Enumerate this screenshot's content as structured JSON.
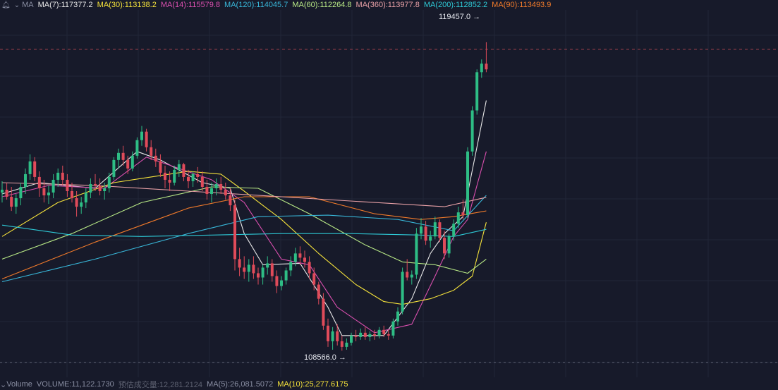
{
  "ma_legend": {
    "label": "MA",
    "items": [
      {
        "text": "MA(7):117377.2",
        "color": "#e8e8e8"
      },
      {
        "text": "MA(30):113138.2",
        "color": "#f5e23b"
      },
      {
        "text": "MA(14):115579.8",
        "color": "#d94fae"
      },
      {
        "text": "MA(120):114045.7",
        "color": "#38b6d8"
      },
      {
        "text": "MA(60):112264.8",
        "color": "#b8e986"
      },
      {
        "text": "MA(360):113977.8",
        "color": "#e8a0a6"
      },
      {
        "text": "MA(200):112852.2",
        "color": "#2ec9d6"
      },
      {
        "text": "MA(90):113493.9",
        "color": "#f07a2a"
      }
    ]
  },
  "volume_legend": {
    "items": [
      {
        "text": "Volume",
        "color": "#8a8fa3"
      },
      {
        "text": "VOLUME:11,122.1730",
        "color": "#8a8fa3"
      },
      {
        "text": "预估成交量:12,281.2124",
        "color": "#5c6070"
      },
      {
        "text": "MA(5):26,081.5072",
        "color": "#8a8fa3"
      },
      {
        "text": "MA(10):25,277.6175",
        "color": "#f5e23b"
      }
    ]
  },
  "price_labels": {
    "high": "119457.0 →",
    "low": "108566.0 →"
  },
  "colors": {
    "up": "#2ebd85",
    "down": "#e04b5a",
    "background": "#171a2a",
    "grid": "#222638"
  },
  "chart_data": {
    "type": "candlestick",
    "title": "",
    "y_range": [
      108000,
      120500
    ],
    "grid": true,
    "annotations": [
      {
        "text": "119457.0",
        "kind": "highest price"
      },
      {
        "text": "108566.0",
        "kind": "lowest price"
      }
    ],
    "ohlc": [
      [
        114150,
        114550,
        113800,
        114250
      ],
      [
        114250,
        114480,
        113900,
        114000
      ],
      [
        114000,
        114350,
        113500,
        113650
      ],
      [
        113650,
        114100,
        113400,
        113950
      ],
      [
        113950,
        114500,
        113700,
        114350
      ],
      [
        114350,
        115000,
        114100,
        114800
      ],
      [
        114800,
        115500,
        114600,
        115250
      ],
      [
        115250,
        115400,
        114550,
        114700
      ],
      [
        114700,
        114900,
        114000,
        114300
      ],
      [
        114300,
        114600,
        113800,
        114050
      ],
      [
        114050,
        114400,
        113750,
        114150
      ],
      [
        114150,
        114800,
        113950,
        114600
      ],
      [
        114600,
        115000,
        114350,
        114850
      ],
      [
        114850,
        115100,
        114400,
        114600
      ],
      [
        114600,
        114800,
        114000,
        114200
      ],
      [
        114200,
        114500,
        113800,
        113950
      ],
      [
        113950,
        114200,
        113300,
        113650
      ],
      [
        113650,
        114000,
        113400,
        113800
      ],
      [
        113800,
        114300,
        113600,
        114150
      ],
      [
        114150,
        114650,
        113950,
        114450
      ],
      [
        114450,
        114800,
        114200,
        114400
      ],
      [
        114400,
        114650,
        114050,
        114200
      ],
      [
        114200,
        114500,
        113900,
        114300
      ],
      [
        114300,
        114850,
        114150,
        114700
      ],
      [
        114700,
        115400,
        114600,
        115300
      ],
      [
        115300,
        115700,
        115000,
        115550
      ],
      [
        115550,
        115800,
        115100,
        115300
      ],
      [
        115300,
        115450,
        114800,
        115000
      ],
      [
        115000,
        115600,
        114900,
        115450
      ],
      [
        115450,
        116100,
        115350,
        116000
      ],
      [
        116000,
        116500,
        115800,
        116300
      ],
      [
        116300,
        116400,
        115600,
        115750
      ],
      [
        115750,
        116000,
        115300,
        115450
      ],
      [
        115450,
        115700,
        115050,
        115250
      ],
      [
        115250,
        115500,
        114700,
        114850
      ],
      [
        114850,
        115100,
        114300,
        114600
      ],
      [
        114600,
        114900,
        114200,
        114500
      ],
      [
        114500,
        115100,
        114400,
        114950
      ],
      [
        114950,
        115300,
        114700,
        115150
      ],
      [
        115150,
        115200,
        114550,
        114700
      ],
      [
        114700,
        114950,
        114300,
        114550
      ],
      [
        114550,
        114900,
        114350,
        114800
      ],
      [
        114800,
        115050,
        114500,
        114700
      ],
      [
        114700,
        114900,
        114200,
        114350
      ],
      [
        114350,
        114600,
        113900,
        114100
      ],
      [
        114100,
        114500,
        113800,
        114300
      ],
      [
        114300,
        114650,
        114050,
        114450
      ],
      [
        114450,
        114700,
        114100,
        114250
      ],
      [
        114250,
        114500,
        113900,
        114050
      ],
      [
        114050,
        114300,
        113500,
        113700
      ],
      [
        113700,
        113900,
        111400,
        111800
      ],
      [
        111800,
        112200,
        111200,
        111500
      ],
      [
        111500,
        111900,
        111100,
        111350
      ],
      [
        111350,
        111800,
        111000,
        111600
      ],
      [
        111600,
        111900,
        111100,
        111300
      ],
      [
        111300,
        111500,
        110900,
        111150
      ],
      [
        111150,
        111600,
        110900,
        111500
      ],
      [
        111500,
        111900,
        111250,
        111650
      ],
      [
        111650,
        111800,
        111000,
        111200
      ],
      [
        111200,
        111400,
        110600,
        110850
      ],
      [
        110850,
        111200,
        110700,
        111050
      ],
      [
        111050,
        111500,
        110900,
        111400
      ],
      [
        111400,
        111900,
        111200,
        111700
      ],
      [
        111700,
        112200,
        111550,
        112000
      ],
      [
        112000,
        112250,
        111600,
        111850
      ],
      [
        111850,
        112100,
        111500,
        111700
      ],
      [
        111700,
        111900,
        111100,
        111300
      ],
      [
        111300,
        111500,
        110700,
        110900
      ],
      [
        110900,
        111000,
        110200,
        110400
      ],
      [
        110400,
        110600,
        109300,
        109450
      ],
      [
        109450,
        109700,
        108700,
        108900
      ],
      [
        108900,
        109400,
        108600,
        109250
      ],
      [
        109250,
        109500,
        108750,
        108900
      ],
      [
        108900,
        109100,
        108566,
        108700
      ],
      [
        108700,
        109000,
        108600,
        108850
      ],
      [
        108850,
        109200,
        108750,
        109100
      ],
      [
        109100,
        109300,
        108900,
        109050
      ],
      [
        109050,
        109350,
        108950,
        109200
      ],
      [
        109200,
        109400,
        108950,
        109050
      ],
      [
        109050,
        109250,
        108900,
        109150
      ],
      [
        109150,
        109300,
        108950,
        109100
      ],
      [
        109100,
        109400,
        109000,
        109300
      ],
      [
        109300,
        109450,
        109050,
        109150
      ],
      [
        109150,
        109300,
        108950,
        109100
      ],
      [
        109100,
        109700,
        109000,
        109600
      ],
      [
        109600,
        110100,
        109450,
        109950
      ],
      [
        109950,
        111500,
        109850,
        111350
      ],
      [
        111350,
        111800,
        111050,
        111150
      ],
      [
        111150,
        111400,
        110900,
        111250
      ],
      [
        111250,
        112900,
        111100,
        112700
      ],
      [
        112700,
        113250,
        112500,
        112950
      ],
      [
        112950,
        113150,
        112300,
        112450
      ],
      [
        112450,
        112800,
        112200,
        112600
      ],
      [
        112600,
        113300,
        112500,
        113100
      ],
      [
        113100,
        113200,
        112400,
        112550
      ],
      [
        112550,
        112800,
        111800,
        112000
      ],
      [
        112000,
        112700,
        111850,
        112600
      ],
      [
        112600,
        113200,
        112450,
        113050
      ],
      [
        113050,
        113650,
        112900,
        113450
      ],
      [
        113450,
        113900,
        113200,
        113350
      ],
      [
        113350,
        115750,
        113250,
        115600
      ],
      [
        115600,
        117200,
        115450,
        117050
      ],
      [
        117050,
        118500,
        116900,
        118400
      ],
      [
        118400,
        118850,
        118200,
        118700
      ],
      [
        118700,
        119457,
        118400,
        118500
      ]
    ],
    "moving_averages": [
      {
        "name": "MA(7)",
        "color": "#e8e8e8",
        "points": [
          [
            0,
            114100
          ],
          [
            8,
            114500
          ],
          [
            20,
            114300
          ],
          [
            29,
            115600
          ],
          [
            34,
            115300
          ],
          [
            43,
            114500
          ],
          [
            49,
            114300
          ],
          [
            52,
            112700
          ],
          [
            56,
            111600
          ],
          [
            64,
            111650
          ],
          [
            70,
            110100
          ],
          [
            73,
            109100
          ],
          [
            82,
            109100
          ],
          [
            88,
            110400
          ],
          [
            92,
            112000
          ],
          [
            95,
            112700
          ],
          [
            99,
            113300
          ],
          [
            104,
            117400
          ]
        ]
      },
      {
        "name": "MA(14)",
        "color": "#d94fae",
        "points": [
          [
            0,
            114000
          ],
          [
            10,
            114400
          ],
          [
            22,
            114300
          ],
          [
            31,
            115400
          ],
          [
            38,
            115000
          ],
          [
            45,
            114600
          ],
          [
            52,
            113800
          ],
          [
            60,
            111800
          ],
          [
            66,
            111600
          ],
          [
            72,
            110100
          ],
          [
            80,
            109200
          ],
          [
            88,
            109500
          ],
          [
            93,
            111200
          ],
          [
            97,
            112600
          ],
          [
            100,
            113200
          ],
          [
            104,
            115600
          ]
        ]
      },
      {
        "name": "MA(30)",
        "color": "#f5e23b",
        "points": [
          [
            0,
            112600
          ],
          [
            12,
            113800
          ],
          [
            24,
            114500
          ],
          [
            32,
            114700
          ],
          [
            40,
            114900
          ],
          [
            47,
            114800
          ],
          [
            52,
            114200
          ],
          [
            60,
            113200
          ],
          [
            68,
            112000
          ],
          [
            76,
            110900
          ],
          [
            82,
            110300
          ],
          [
            86,
            110200
          ],
          [
            92,
            110400
          ],
          [
            97,
            110700
          ],
          [
            101,
            111200
          ],
          [
            104,
            113100
          ]
        ]
      },
      {
        "name": "MA(60)",
        "color": "#b8e986",
        "points": [
          [
            0,
            111800
          ],
          [
            15,
            112700
          ],
          [
            30,
            113800
          ],
          [
            45,
            114350
          ],
          [
            55,
            114300
          ],
          [
            66,
            113400
          ],
          [
            78,
            112300
          ],
          [
            86,
            111700
          ],
          [
            93,
            111600
          ],
          [
            100,
            111300
          ],
          [
            104,
            111800
          ]
        ]
      },
      {
        "name": "MA(90)",
        "color": "#f07a2a",
        "points": [
          [
            0,
            111100
          ],
          [
            20,
            112400
          ],
          [
            40,
            113600
          ],
          [
            52,
            114000
          ],
          [
            66,
            114000
          ],
          [
            80,
            113400
          ],
          [
            90,
            113200
          ],
          [
            97,
            113300
          ],
          [
            104,
            113500
          ]
        ]
      },
      {
        "name": "MA(120)",
        "color": "#38b6d8",
        "points": [
          [
            0,
            111000
          ],
          [
            20,
            111800
          ],
          [
            40,
            112700
          ],
          [
            55,
            113300
          ],
          [
            70,
            113350
          ],
          [
            85,
            113200
          ],
          [
            97,
            112800
          ],
          [
            104,
            114050
          ]
        ]
      },
      {
        "name": "MA(200)",
        "color": "#2ec9d6",
        "points": [
          [
            0,
            113000
          ],
          [
            15,
            112650
          ],
          [
            30,
            112600
          ],
          [
            45,
            112650
          ],
          [
            60,
            112700
          ],
          [
            75,
            112700
          ],
          [
            90,
            112650
          ],
          [
            97,
            112600
          ],
          [
            104,
            112850
          ]
        ]
      },
      {
        "name": "MA(360)",
        "color": "#e8a0a6",
        "points": [
          [
            0,
            114500
          ],
          [
            20,
            114400
          ],
          [
            40,
            114200
          ],
          [
            60,
            114000
          ],
          [
            80,
            113800
          ],
          [
            95,
            113650
          ],
          [
            104,
            113980
          ]
        ]
      }
    ]
  }
}
